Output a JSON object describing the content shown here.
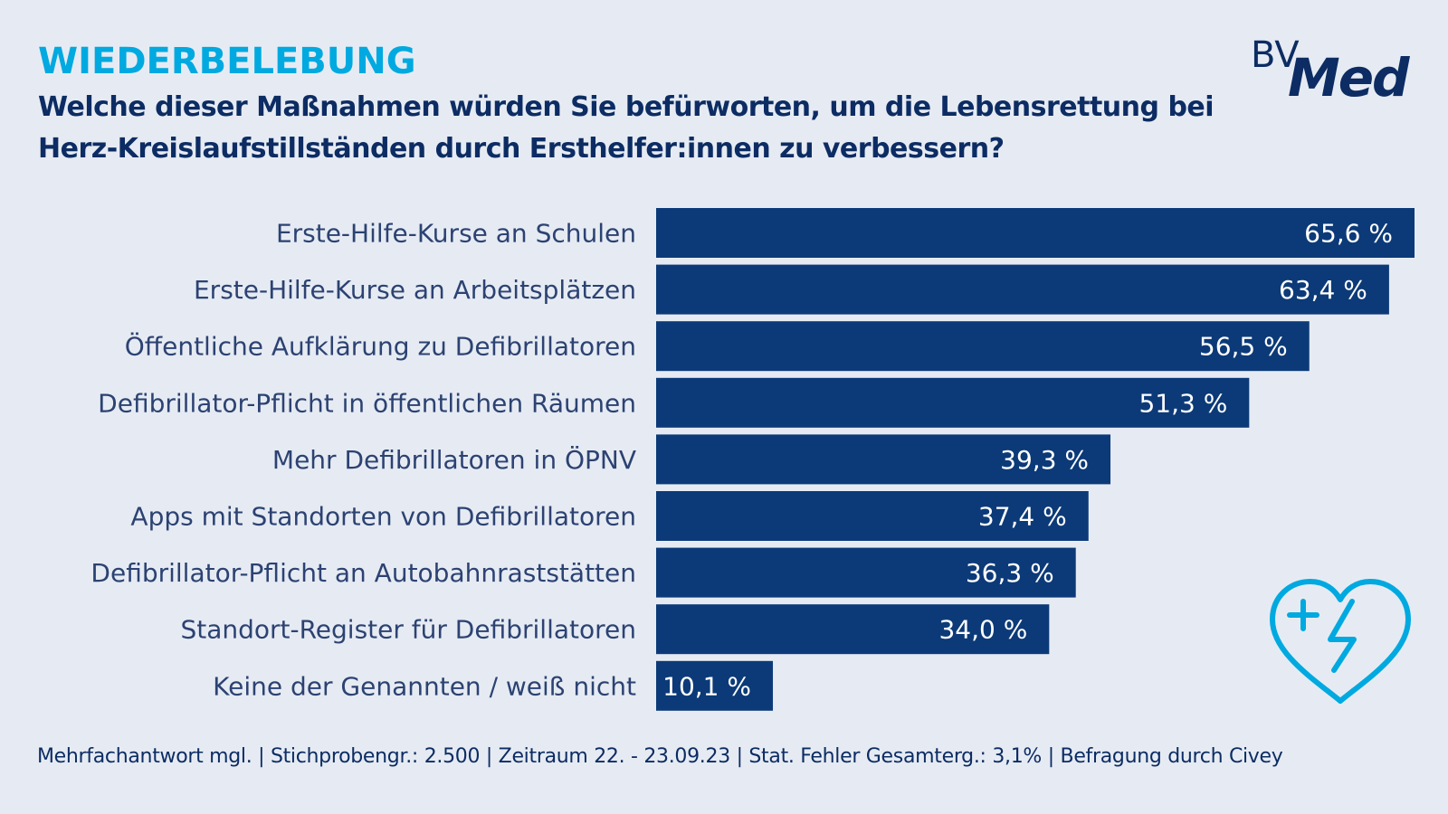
{
  "header": {
    "kicker": "WIEDERBELEBUNG",
    "question": "Welche dieser Maßnahmen würden Sie befürworten, um die Lebensrettung bei Herz-Kreislaufstillständen durch Ersthelfer:innen zu verbessern?"
  },
  "logo": {
    "bv": "BV",
    "med": "Med"
  },
  "colors": {
    "bar": "#0c3a78",
    "accent": "#00a9e0",
    "text": "#0c2c63",
    "background": "#e6ebf3"
  },
  "chart_data": {
    "type": "bar",
    "orientation": "horizontal",
    "categories": [
      "Erste-Hilfe-Kurse an Schulen",
      "Erste-Hilfe-Kurse an Arbeitsplätzen",
      "Öffentliche Aufklärung zu Defibrillatoren",
      "Defibrillator-Pflicht in öffentlichen Räumen",
      "Mehr Defibrillatoren in ÖPNV",
      "Apps mit Standorten von Defibrillatoren",
      "Defibrillator-Pflicht an Autobahnraststätten",
      "Standort-Register für Defibrillatoren",
      "Keine der Genannten / weiß nicht"
    ],
    "values": [
      65.6,
      63.4,
      56.5,
      51.3,
      39.3,
      37.4,
      36.3,
      34.0,
      10.1
    ],
    "value_labels": [
      "65,6 %",
      "63,4 %",
      "56,5 %",
      "51,3 %",
      "39,3 %",
      "37,4 %",
      "36,3 %",
      "34,0 %",
      "10,1 %"
    ],
    "grid": false,
    "legend": "none"
  },
  "footer": "Mehrfachantwort mgl. | Stichprobengr.: 2.500 | Zeitraum 22. - 23.09.23 | Stat. Fehler Gesamterg.: 3,1% | Befragung durch Civey",
  "icons": [
    "heart-defibrillator-icon"
  ]
}
